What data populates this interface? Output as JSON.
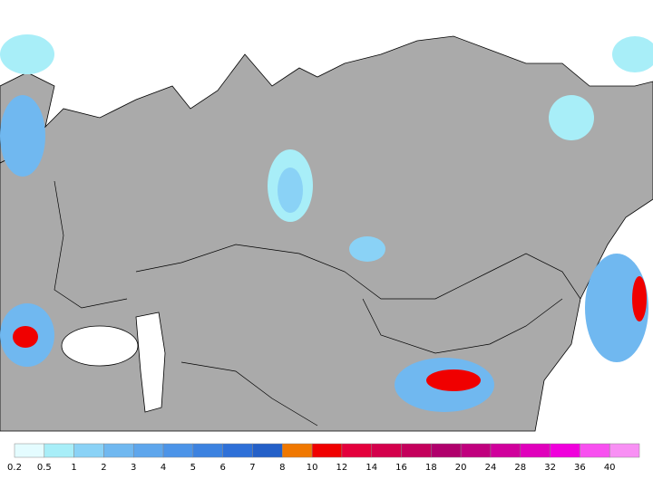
{
  "legend": {
    "ticks": [
      0.2,
      0.5,
      1,
      2,
      3,
      4,
      5,
      6,
      7,
      8,
      10,
      12,
      14,
      16,
      18,
      20,
      24,
      28,
      32,
      36,
      40
    ],
    "colors": [
      "#e4fcff",
      "#a8eef8",
      "#8ad2f6",
      "#70b8f0",
      "#5ea6ec",
      "#4c94e8",
      "#3c82e0",
      "#2e70d8",
      "#2460c8",
      "#f07800",
      "#f00000",
      "#e4003c",
      "#d4004c",
      "#c4005c",
      "#b0006c",
      "#c0007e",
      "#d0009c",
      "#e000bc",
      "#f000dc",
      "#f850f0",
      "#f890f4"
    ]
  }
}
